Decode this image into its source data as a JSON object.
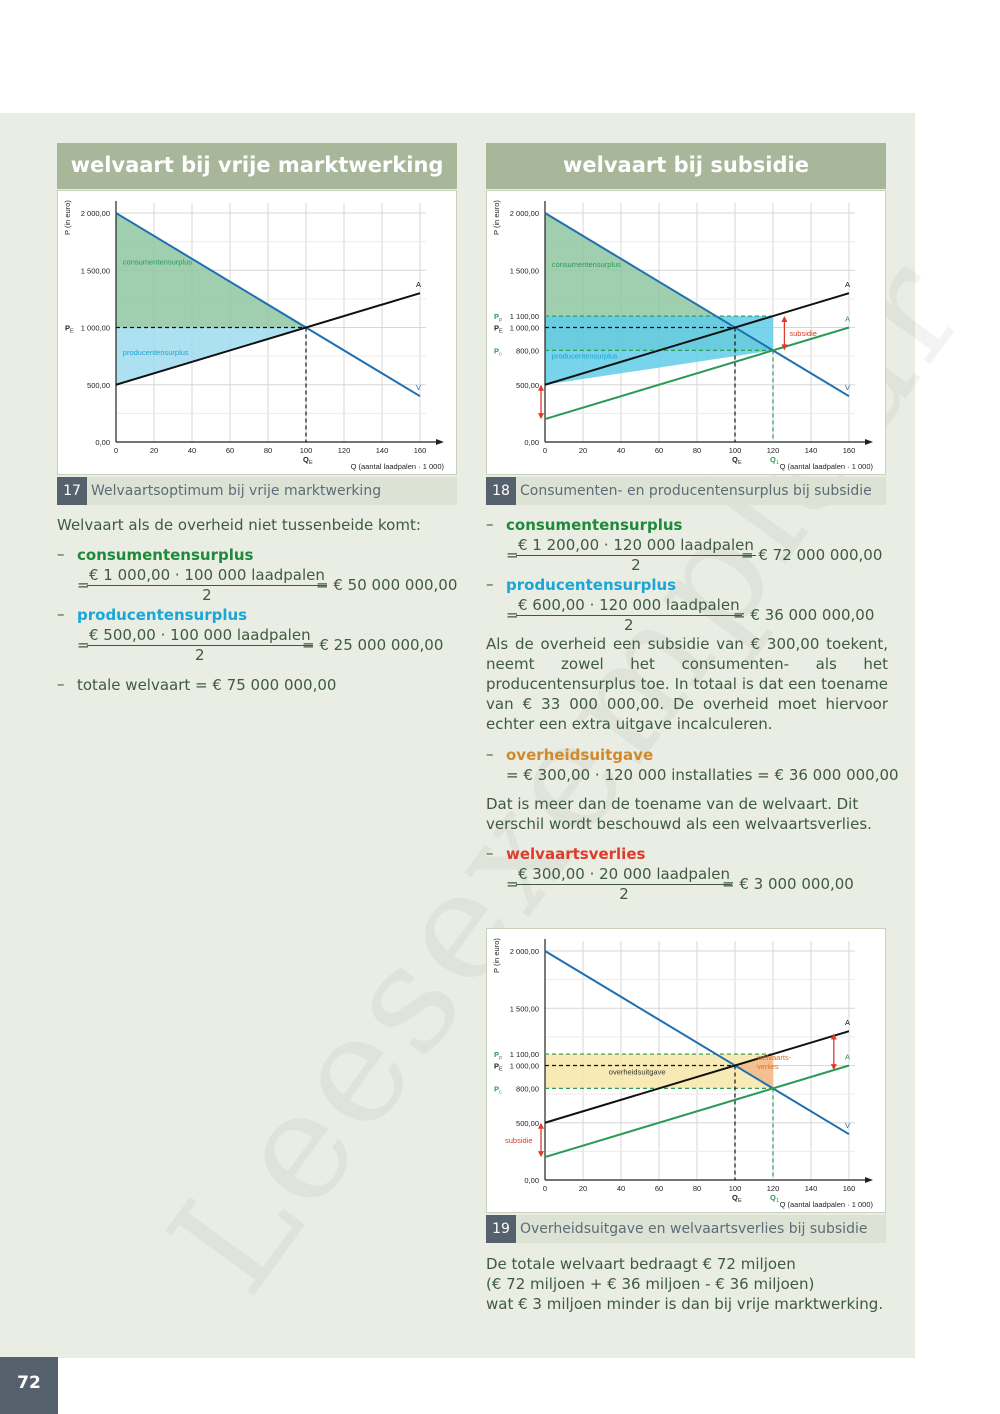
{
  "watermark": "Leesexemplaar",
  "page_number": "72",
  "headers": {
    "left": "welvaart bij vrije marktwerking",
    "right": "welvaart bij subsidie"
  },
  "captions": {
    "c17": {
      "num": "17",
      "text": "Welvaartsoptimum bij vrije marktwerking"
    },
    "c18": {
      "num": "18",
      "text": "Consumenten- en producentensurplus bij subsidie"
    },
    "c19": {
      "num": "19",
      "text": "Overheidsuitgave en welvaartsverlies bij subsidie"
    }
  },
  "left_text": {
    "intro": "Welvaart als de overheid niet tussenbeide komt:",
    "cs_label": "consumentensurplus",
    "cs_num": "€ 1 000,00 · 100 000 laadpalen",
    "cs_den": "2",
    "cs_result": "= € 50 000 000,00",
    "ps_label": "producentensurplus",
    "ps_num": "€ 500,00 · 100 000 laadpalen",
    "ps_den": "2",
    "ps_result": "= € 25 000 000,00",
    "total": "totale welvaart = € 75 000 000,00"
  },
  "right_text": {
    "cs_label": "consumentensurplus",
    "cs_num": "€ 1 200,00 · 120 000 laadpalen",
    "cs_den": "2",
    "cs_result": "= € 72 000 000,00",
    "ps_label": "producentensurplus",
    "ps_num": "€ 600,00 · 120 000 laadpalen",
    "ps_den": "2",
    "ps_result": "= € 36 000 000,00",
    "p1": "Als de overheid een subsidie van € 300,00 toekent, neemt zowel het consumenten- als het producentensurplus toe. In totaal is dat een toename van € 33 000 000,00. De overheid moet hiervoor echter een extra uitgave incalculeren.",
    "og_label": "overheidsuitgave",
    "og_line": "= € 300,00 · 120 000 installaties = € 36 000 000,00",
    "p2": "Dat is meer dan de toename van de welvaart. Dit verschil wordt beschouwd als een welvaartsverlies.",
    "wv_label": "welvaartsverlies",
    "wv_num": "€ 300,00 · 20 000 laadpalen",
    "wv_den": "2",
    "wv_result": "= € 3 000 000,00",
    "p3_l1": "De totale welvaart bedraagt € 72 miljoen",
    "p3_l2": "(€ 72 miljoen + € 36 miljoen - € 36 miljoen)",
    "p3_l3": "wat € 3 miljoen minder is dan bij vrije marktwerking."
  },
  "chart_data": [
    {
      "id": "chart17",
      "type": "line",
      "ylabel": "P (in euro)",
      "xlabel": "Q (aantal laadpalen · 1 000)",
      "xlim": [
        0,
        160
      ],
      "ylim": [
        0,
        2000
      ],
      "x_ticks": [
        "0",
        "20",
        "40",
        "60",
        "80",
        "100",
        "120",
        "140",
        "160"
      ],
      "y_ticks": [
        {
          "v": 0,
          "label": "0,00"
        },
        {
          "v": 500,
          "label": "500,00"
        },
        {
          "v": 1000,
          "label": "1 000,00"
        },
        {
          "v": 1500,
          "label": "1 500,00"
        },
        {
          "v": 2000,
          "label": "2 000,00"
        }
      ],
      "series": [
        {
          "name": "V",
          "color": "#1f6fb0",
          "points": [
            [
              0,
              2000
            ],
            [
              160,
              400
            ]
          ]
        },
        {
          "name": "A",
          "color": "#111111",
          "points": [
            [
              0,
              500
            ],
            [
              160,
              1300
            ]
          ]
        }
      ],
      "areas": [
        {
          "label": "consumentensurplus",
          "color": "#8fc7a2",
          "label_color": "#2a9a55",
          "points": [
            [
              0,
              2000
            ],
            [
              100,
              1000
            ],
            [
              0,
              1000
            ]
          ],
          "label_at": [
            2,
            1550
          ]
        },
        {
          "label": "producentensurplus",
          "color": "#9fdcf0",
          "label_color": "#1aa6d6",
          "points": [
            [
              0,
              1000
            ],
            [
              100,
              1000
            ],
            [
              0,
              500
            ]
          ],
          "label_at": [
            2,
            760
          ]
        }
      ],
      "dashed": [
        {
          "points": [
            [
              0,
              1000
            ],
            [
              100,
              1000
            ]
          ],
          "color": "#111111"
        },
        {
          "points": [
            [
              100,
              1000
            ],
            [
              100,
              0
            ]
          ],
          "color": "#111111"
        }
      ],
      "annotations": [
        {
          "text": "P",
          "sub": "E",
          "x": "yaxis",
          "y": 1000
        },
        {
          "text": "Q",
          "sub": "E",
          "x": 100,
          "y": "xaxis"
        }
      ]
    },
    {
      "id": "chart18",
      "type": "line",
      "ylabel": "P (in euro)",
      "xlabel": "Q (aantal laadpalen · 1 000)",
      "xlim": [
        0,
        160
      ],
      "ylim": [
        0,
        2000
      ],
      "x_ticks": [
        "0",
        "20",
        "40",
        "60",
        "80",
        "100",
        "120",
        "140",
        "160"
      ],
      "y_ticks": [
        {
          "v": 0,
          "label": "0,00"
        },
        {
          "v": 500,
          "label": "500,00"
        },
        {
          "v": 800,
          "label": "800,00",
          "prefix": "P",
          "sub": "c"
        },
        {
          "v": 1000,
          "label": "1 000,00",
          "prefix": "P",
          "sub": "E"
        },
        {
          "v": 1100,
          "label": "1 100,00",
          "prefix": "P",
          "sub": "p"
        },
        {
          "v": 1500,
          "label": "1 500,00"
        },
        {
          "v": 2000,
          "label": "2 000,00"
        }
      ],
      "series": [
        {
          "name": "V",
          "color": "#1f6fb0",
          "points": [
            [
              0,
              2000
            ],
            [
              160,
              400
            ]
          ]
        },
        {
          "name": "A",
          "color": "#111111",
          "points": [
            [
              0,
              500
            ],
            [
              160,
              1300
            ]
          ]
        },
        {
          "name": "A",
          "color": "#2a9a55",
          "points": [
            [
              0,
              200
            ],
            [
              160,
              1000
            ]
          ]
        }
      ],
      "areas": [
        {
          "label": "consumentensurplus",
          "color": "#8fc7a2",
          "label_color": "#2a9a55",
          "points": [
            [
              0,
              2000
            ],
            [
              120,
              800
            ],
            [
              0,
              800
            ]
          ],
          "label_at": [
            2,
            1530
          ]
        },
        {
          "label": "producentensurplus",
          "color": "#5fcde8",
          "label_color": "#1aa6d6",
          "points": [
            [
              0,
              1100
            ],
            [
              120,
              1100
            ],
            [
              120,
              800
            ],
            [
              0,
              500
            ]
          ],
          "label_at": [
            2,
            730
          ]
        }
      ],
      "dashed": [
        {
          "points": [
            [
              0,
              1100
            ],
            [
              120,
              1100
            ]
          ],
          "color": "#2a9a55"
        },
        {
          "points": [
            [
              0,
              1000
            ],
            [
              100,
              1000
            ]
          ],
          "color": "#111111"
        },
        {
          "points": [
            [
              0,
              800
            ],
            [
              120,
              800
            ]
          ],
          "color": "#2a9a55"
        },
        {
          "points": [
            [
              100,
              1000
            ],
            [
              100,
              0
            ]
          ],
          "color": "#111111"
        },
        {
          "points": [
            [
              120,
              800
            ],
            [
              120,
              0
            ]
          ],
          "color": "#2a9a55"
        }
      ],
      "arrows": [
        {
          "x": 126,
          "y1": 1100,
          "y2": 800,
          "color": "#e03a2a",
          "label": "subsidie",
          "label_side": "right"
        },
        {
          "x": -1,
          "y1": 500,
          "y2": 200,
          "color": "#e03a2a",
          "label": "",
          "label_side": "right"
        }
      ],
      "annotations": [
        {
          "text": "Q",
          "sub": "E",
          "x": 100,
          "y": "xaxis"
        },
        {
          "text": "Q",
          "sub": "1",
          "x": 120,
          "y": "xaxis"
        }
      ]
    },
    {
      "id": "chart19",
      "type": "line",
      "ylabel": "P (in euro)",
      "xlabel": "Q (aantal laadpalen · 1 000)",
      "xlim": [
        0,
        160
      ],
      "ylim": [
        0,
        2000
      ],
      "x_ticks": [
        "0",
        "20",
        "40",
        "60",
        "80",
        "100",
        "120",
        "140",
        "160"
      ],
      "y_ticks": [
        {
          "v": 0,
          "label": "0,00"
        },
        {
          "v": 500,
          "label": "500,00"
        },
        {
          "v": 800,
          "label": "800,00",
          "prefix": "P",
          "sub": "c"
        },
        {
          "v": 1000,
          "label": "1 000,00",
          "prefix": "P",
          "sub": "E"
        },
        {
          "v": 1100,
          "label": "1 100,00",
          "prefix": "P",
          "sub": "p"
        },
        {
          "v": 1500,
          "label": "1 500,00"
        },
        {
          "v": 2000,
          "label": "2 000,00"
        }
      ],
      "series": [
        {
          "name": "V",
          "color": "#1f6fb0",
          "points": [
            [
              0,
              2000
            ],
            [
              160,
              400
            ]
          ]
        },
        {
          "name": "A",
          "color": "#111111",
          "points": [
            [
              0,
              500
            ],
            [
              160,
              1300
            ]
          ]
        },
        {
          "name": "A",
          "color": "#2a9a55",
          "points": [
            [
              0,
              200
            ],
            [
              160,
              1000
            ]
          ]
        }
      ],
      "areas": [
        {
          "label": "overheidsuitgave",
          "color": "#f7e6a8",
          "label_color": "#333333",
          "points": [
            [
              0,
              1100
            ],
            [
              120,
              1100
            ],
            [
              120,
              800
            ],
            [
              0,
              800
            ]
          ],
          "label_at": [
            32,
            920
          ]
        },
        {
          "label": "welvaarts-\nverlies",
          "color": "#f3b98a",
          "label_color": "#e0702a",
          "points": [
            [
              100,
              1000
            ],
            [
              120,
              1100
            ],
            [
              120,
              800
            ]
          ],
          "label_at": [
            110,
            1050
          ]
        }
      ],
      "dashed": [
        {
          "points": [
            [
              0,
              1100
            ],
            [
              120,
              1100
            ]
          ],
          "color": "#2a9a55"
        },
        {
          "points": [
            [
              0,
              1000
            ],
            [
              100,
              1000
            ]
          ],
          "color": "#111111"
        },
        {
          "points": [
            [
              0,
              800
            ],
            [
              120,
              800
            ]
          ],
          "color": "#2a9a55"
        },
        {
          "points": [
            [
              100,
              1000
            ],
            [
              100,
              0
            ]
          ],
          "color": "#111111"
        },
        {
          "points": [
            [
              120,
              800
            ],
            [
              120,
              0
            ]
          ],
          "color": "#2a9a55"
        }
      ],
      "arrows": [
        {
          "x": 152,
          "y1": 1280,
          "y2": 960,
          "color": "#e03a2a",
          "label": "",
          "label_side": "right"
        },
        {
          "x": -1,
          "y1": 500,
          "y2": 200,
          "color": "#e03a2a",
          "label": "subsidie",
          "label_side": "left"
        }
      ],
      "annotations": [
        {
          "text": "Q",
          "sub": "E",
          "x": 100,
          "y": "xaxis"
        },
        {
          "text": "Q",
          "sub": "1",
          "x": 120,
          "y": "xaxis"
        }
      ]
    }
  ]
}
